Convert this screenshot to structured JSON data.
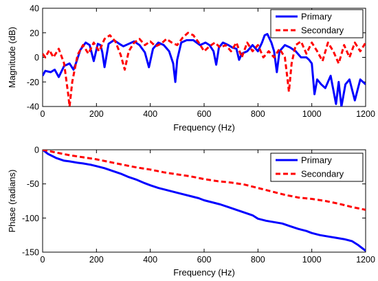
{
  "chart_data": [
    {
      "type": "line",
      "xlabel": "Frequency (Hz)",
      "ylabel": "Magnitude (dB)",
      "xlim": [
        0,
        1200
      ],
      "ylim": [
        -40,
        40
      ],
      "xticks": [
        "0",
        "200",
        "400",
        "600",
        "800",
        "1000",
        "1200"
      ],
      "yticks": [
        "40",
        "20",
        "0",
        "-20",
        "-40"
      ],
      "grid": false,
      "legend": "top-right",
      "series": [
        {
          "name": "Primary",
          "color": "#0000ff",
          "style": "solid",
          "x": [
            0,
            10,
            30,
            45,
            60,
            80,
            100,
            115,
            125,
            140,
            160,
            175,
            190,
            205,
            215,
            222,
            230,
            245,
            265,
            285,
            300,
            320,
            340,
            360,
            380,
            395,
            410,
            430,
            450,
            470,
            485,
            493,
            500,
            515,
            535,
            560,
            585,
            605,
            620,
            635,
            645,
            655,
            670,
            690,
            705,
            720,
            730,
            740,
            760,
            780,
            800,
            815,
            825,
            835,
            850,
            860,
            870,
            880,
            900,
            920,
            940,
            960,
            980,
            990,
            1000,
            1010,
            1020,
            1035,
            1050,
            1070,
            1090,
            1100,
            1110,
            1125,
            1140,
            1160,
            1180,
            1200
          ],
          "y": [
            -15,
            -11,
            -12,
            -10,
            -16,
            -7,
            -5,
            -10,
            -4,
            6,
            12,
            10,
            -3,
            11,
            10,
            4,
            -8,
            11,
            14,
            11,
            9,
            11,
            13,
            10,
            4,
            -8,
            7,
            12,
            10,
            5,
            -5,
            -20,
            -2,
            12,
            14,
            14,
            10,
            12,
            10,
            5,
            -6,
            8,
            12,
            10,
            8,
            7,
            -2,
            3,
            5,
            10,
            5,
            12,
            18,
            19,
            12,
            5,
            -12,
            5,
            10,
            8,
            5,
            0,
            0,
            -2,
            -5,
            -30,
            -18,
            -22,
            -25,
            -15,
            -38,
            -20,
            -40,
            -22,
            -18,
            -35,
            -18,
            -22
          ]
        },
        {
          "name": "Secondary",
          "color": "#ff0000",
          "style": "dashed",
          "x": [
            0,
            10,
            25,
            40,
            60,
            80,
            95,
            100,
            110,
            130,
            150,
            170,
            190,
            210,
            230,
            250,
            270,
            290,
            305,
            320,
            340,
            360,
            380,
            400,
            420,
            440,
            460,
            480,
            500,
            520,
            540,
            560,
            580,
            600,
            620,
            640,
            660,
            680,
            700,
            720,
            740,
            760,
            780,
            800,
            820,
            840,
            860,
            880,
            900,
            910,
            915,
            925,
            940,
            960,
            980,
            1000,
            1020,
            1040,
            1060,
            1080,
            1100,
            1120,
            1140,
            1160,
            1180,
            1200
          ],
          "y": [
            3,
            0,
            6,
            0,
            7,
            -5,
            -30,
            -40,
            -20,
            2,
            10,
            3,
            12,
            5,
            15,
            18,
            13,
            2,
            -10,
            5,
            12,
            15,
            10,
            13,
            9,
            11,
            15,
            12,
            10,
            16,
            20,
            18,
            12,
            5,
            9,
            12,
            8,
            10,
            5,
            12,
            0,
            12,
            5,
            10,
            0,
            5,
            0,
            7,
            0,
            -18,
            -28,
            -5,
            10,
            13,
            3,
            12,
            5,
            -3,
            12,
            5,
            -5,
            10,
            0,
            12,
            5,
            12
          ]
        }
      ]
    },
    {
      "type": "line",
      "xlabel": "Frequency (Hz)",
      "ylabel": "Phase (radians)",
      "xlim": [
        0,
        1200
      ],
      "ylim": [
        -150,
        0
      ],
      "xticks": [
        "0",
        "200",
        "400",
        "600",
        "800",
        "1000",
        "1200"
      ],
      "yticks": [
        "0",
        "-50",
        "-100",
        "-150"
      ],
      "grid": false,
      "legend": "top-right",
      "series": [
        {
          "name": "Primary",
          "color": "#0000ff",
          "style": "solid",
          "x": [
            0,
            20,
            50,
            80,
            100,
            130,
            150,
            180,
            200,
            230,
            260,
            290,
            320,
            350,
            380,
            400,
            430,
            460,
            490,
            520,
            550,
            580,
            600,
            630,
            660,
            690,
            720,
            750,
            780,
            800,
            830,
            860,
            890,
            920,
            950,
            980,
            1000,
            1030,
            1060,
            1090,
            1120,
            1150,
            1170,
            1190,
            1200
          ],
          "y": [
            0,
            -6,
            -12,
            -16,
            -17,
            -19,
            -20,
            -22,
            -24,
            -27,
            -31,
            -35,
            -40,
            -44,
            -49,
            -52,
            -56,
            -59,
            -62,
            -65,
            -68,
            -71,
            -74,
            -77,
            -80,
            -84,
            -88,
            -92,
            -96,
            -101,
            -104,
            -106,
            -108,
            -112,
            -116,
            -119,
            -122,
            -125,
            -127,
            -129,
            -131,
            -134,
            -139,
            -145,
            -148
          ]
        },
        {
          "name": "Secondary",
          "color": "#ff0000",
          "style": "dashed",
          "x": [
            0,
            50,
            100,
            150,
            200,
            250,
            300,
            350,
            400,
            450,
            500,
            550,
            600,
            650,
            700,
            750,
            800,
            850,
            900,
            950,
            1000,
            1050,
            1100,
            1150,
            1200
          ],
          "y": [
            0,
            -4,
            -8,
            -11,
            -14,
            -18,
            -22,
            -26,
            -29,
            -33,
            -36,
            -39,
            -43,
            -46,
            -48,
            -51,
            -56,
            -61,
            -66,
            -70,
            -72,
            -75,
            -79,
            -84,
            -88
          ]
        }
      ]
    }
  ]
}
